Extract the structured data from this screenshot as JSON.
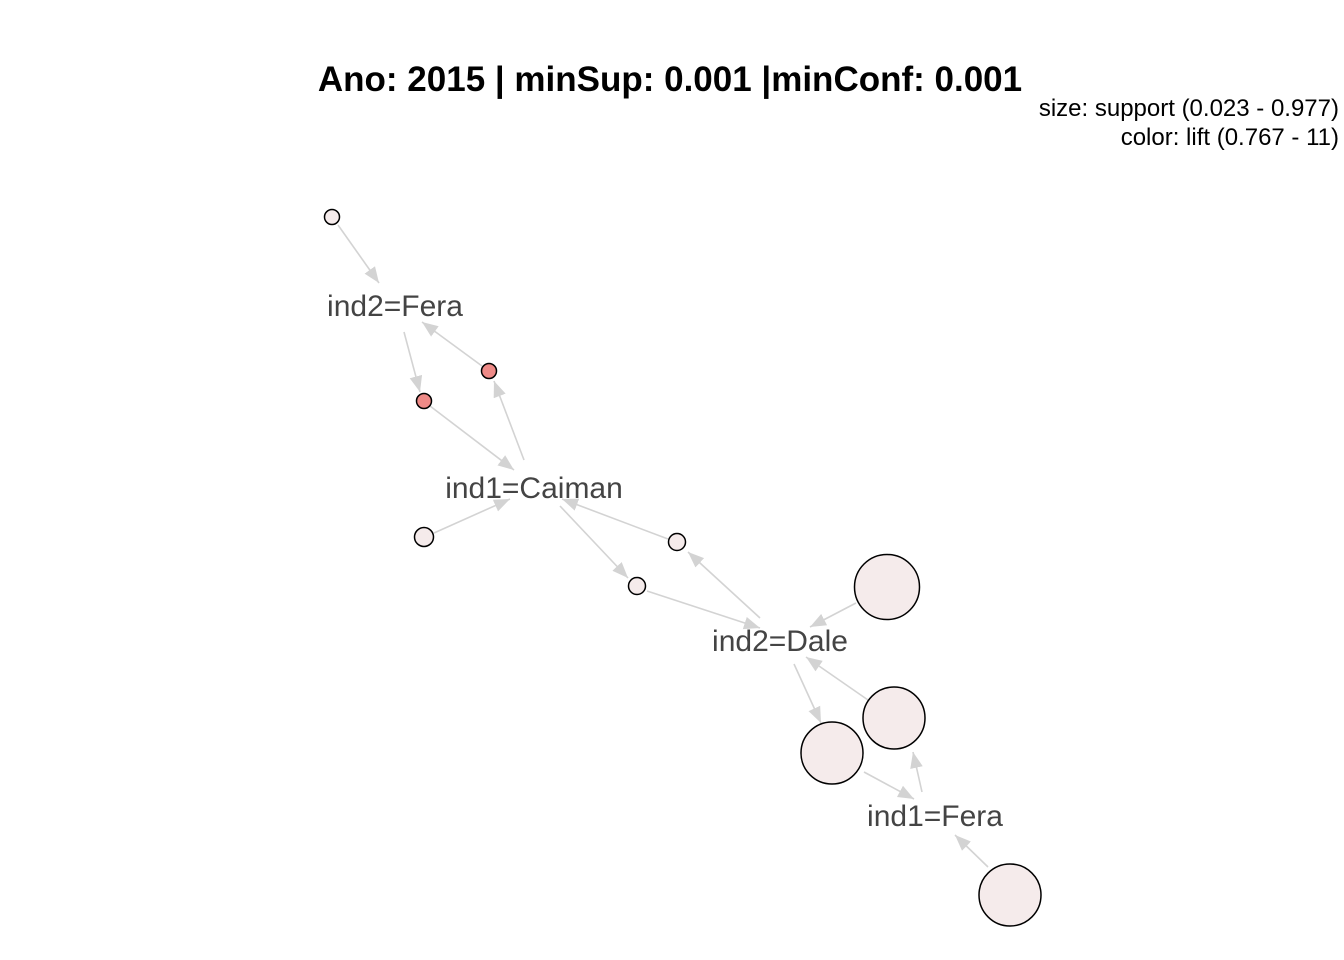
{
  "title": "Ano: 2015 | minSup: 0.001 |minConf: 0.001",
  "legend": {
    "size_text": "size: support (0.023 - 0.977)",
    "color_text": "color: lift (0.767 - 11)"
  },
  "colors": {
    "edge": "#d3d3d3",
    "label": "#444444",
    "node_low_lift": "#f5ebeb",
    "node_high_lift": "#ee8a87"
  },
  "items": [
    {
      "id": "fera2",
      "label": "ind2=Fera"
    },
    {
      "id": "caiman1",
      "label": "ind1=Caiman"
    },
    {
      "id": "dale2",
      "label": "ind2=Dale"
    },
    {
      "id": "fera1",
      "label": "ind1=Fera"
    }
  ],
  "rules": [
    {
      "id": "r1",
      "lhs": [],
      "rhs": "fera2",
      "lift_level": "low",
      "support_level": "small"
    },
    {
      "id": "r2",
      "lhs": [
        "caiman1"
      ],
      "rhs": "fera2",
      "lift_level": "high",
      "support_level": "small"
    },
    {
      "id": "r3",
      "lhs": [
        "fera2"
      ],
      "rhs": "caiman1",
      "lift_level": "high",
      "support_level": "small"
    },
    {
      "id": "r4",
      "lhs": [],
      "rhs": "caiman1",
      "lift_level": "low",
      "support_level": "small"
    },
    {
      "id": "r5",
      "lhs": [
        "dale2"
      ],
      "rhs": "caiman1",
      "lift_level": "low",
      "support_level": "small"
    },
    {
      "id": "r6",
      "lhs": [
        "caiman1"
      ],
      "rhs": "dale2",
      "lift_level": "low",
      "support_level": "small"
    },
    {
      "id": "r7",
      "lhs": [],
      "rhs": "dale2",
      "lift_level": "low",
      "support_level": "large"
    },
    {
      "id": "r8",
      "lhs": [
        "fera1"
      ],
      "rhs": "dale2",
      "lift_level": "low",
      "support_level": "large"
    },
    {
      "id": "r9",
      "lhs": [
        "dale2"
      ],
      "rhs": "fera1",
      "lift_level": "low",
      "support_level": "large"
    },
    {
      "id": "r10",
      "lhs": [],
      "rhs": "fera1",
      "lift_level": "low",
      "support_level": "large"
    }
  ]
}
